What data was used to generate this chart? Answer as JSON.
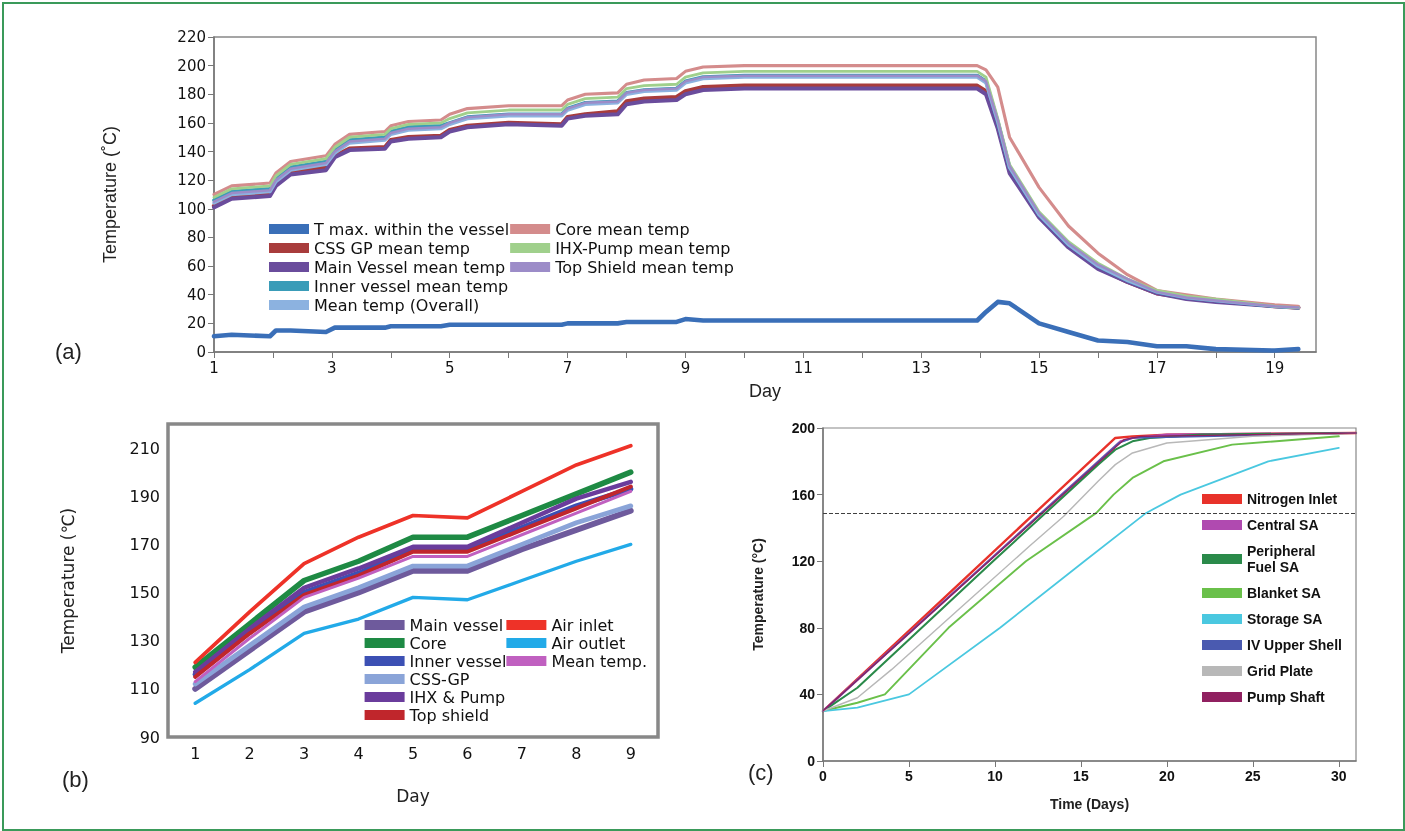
{
  "chart_data": [
    {
      "type": "line",
      "ylabel": "Temperature (˚C)",
      "xlabel": "Day",
      "annotations": [
        "(a)"
      ],
      "legend": "left",
      "marker": "none",
      "xlim": [
        1,
        19.7
      ],
      "xticks": [
        1,
        {
          "value": 2,
          "label": null
        },
        3,
        {
          "value": 4,
          "label": null
        },
        5,
        {
          "value": 6,
          "label": null
        },
        7,
        {
          "value": 8,
          "label": null
        },
        9,
        {
          "value": 10,
          "label": null
        },
        11,
        {
          "value": 12,
          "label": null
        },
        13,
        {
          "value": 14,
          "label": null
        },
        15,
        {
          "value": 16,
          "label": null
        },
        17,
        {
          "value": 18,
          "label": null
        },
        19
      ],
      "ylim": [
        0,
        220
      ],
      "yticks": [
        0,
        20,
        40,
        60,
        80,
        100,
        120,
        140,
        160,
        180,
        200,
        220
      ],
      "x": [
        1,
        1.3,
        1.95,
        2.05,
        2.3,
        2.9,
        3.05,
        3.3,
        3.9,
        4.0,
        4.3,
        4.85,
        5.0,
        5.3,
        6.0,
        6.9,
        7.0,
        7.3,
        7.85,
        8.0,
        8.3,
        8.85,
        9.0,
        9.3,
        10,
        12,
        13.95,
        14.1,
        14.3,
        14.5,
        15,
        15.5,
        16,
        16.5,
        17,
        17.5,
        18,
        19,
        19.4
      ],
      "series": [
        {
          "name": "T max. within the vessel",
          "color": "#3a6fb8",
          "values": [
            11,
            12,
            11,
            15,
            15,
            14,
            17,
            17,
            17,
            18,
            18,
            18,
            19,
            19,
            19,
            19,
            20,
            20,
            20,
            21,
            21,
            21,
            23,
            22,
            22,
            22,
            22,
            28,
            35,
            34,
            20,
            14,
            8,
            7,
            4,
            4,
            2,
            1,
            2
          ]
        },
        {
          "name": "CSS GP mean temp",
          "color": "#a83c3c",
          "values": [
            102,
            108,
            110,
            117,
            125,
            129,
            137,
            142,
            143,
            148,
            150,
            151,
            155,
            158,
            160,
            159,
            164,
            166,
            168,
            175,
            177,
            178,
            182,
            185,
            186,
            186,
            186,
            182,
            158,
            127,
            95,
            74,
            59,
            49,
            41,
            38,
            36,
            32,
            31
          ]
        },
        {
          "name": "Main Vessel mean temp",
          "color": "#6a4c9c",
          "values": [
            101,
            107,
            109,
            116,
            124,
            127,
            136,
            141,
            142,
            147,
            149,
            150,
            154,
            157,
            159,
            158,
            163,
            165,
            166,
            173,
            175,
            176,
            180,
            183,
            184,
            184,
            184,
            180,
            156,
            125,
            94,
            73,
            58,
            49,
            41,
            37,
            35,
            32,
            31
          ]
        },
        {
          "name": "Inner vessel mean temp",
          "color": "#3a9cb8",
          "values": [
            106,
            112,
            114,
            121,
            129,
            133,
            141,
            148,
            150,
            154,
            157,
            158,
            160,
            164,
            166,
            166,
            170,
            174,
            175,
            181,
            183,
            184,
            189,
            192,
            193,
            193,
            193,
            189,
            161,
            129,
            96,
            75,
            60,
            50,
            42,
            38,
            36,
            32,
            31
          ]
        },
        {
          "name": "Mean temp (Overall)",
          "color": "#8cb2e0",
          "values": [
            104,
            110,
            112,
            119,
            127,
            131,
            139,
            146,
            148,
            152,
            155,
            156,
            159,
            163,
            165,
            165,
            169,
            173,
            174,
            180,
            182,
            183,
            188,
            191,
            192,
            192,
            192,
            188,
            161,
            129,
            96,
            75,
            60,
            50,
            42,
            38,
            36,
            32,
            31
          ]
        },
        {
          "name": "Core mean temp",
          "color": "#d48c8c",
          "values": [
            110,
            116,
            118,
            125,
            133,
            137,
            145,
            152,
            154,
            158,
            161,
            162,
            166,
            170,
            172,
            172,
            176,
            180,
            181,
            187,
            190,
            191,
            196,
            199,
            200,
            200,
            200,
            197,
            185,
            150,
            115,
            88,
            69,
            54,
            43,
            40,
            37,
            33,
            32
          ]
        },
        {
          "name": "IHX-Pump mean temp",
          "color": "#a0d08c",
          "values": [
            108,
            114,
            116,
            123,
            131,
            135,
            143,
            150,
            152,
            156,
            159,
            160,
            163,
            167,
            169,
            169,
            173,
            177,
            178,
            184,
            186,
            187,
            192,
            195,
            196,
            196,
            196,
            192,
            163,
            131,
            98,
            77,
            62,
            51,
            43,
            39,
            37,
            32,
            31
          ]
        },
        {
          "name": "Top Shield mean temp",
          "color": "#9c8cc8",
          "values": [
            105,
            111,
            113,
            120,
            128,
            132,
            140,
            147,
            149,
            153,
            156,
            157,
            160,
            164,
            166,
            166,
            170,
            174,
            175,
            181,
            183,
            184,
            189,
            192,
            193,
            193,
            193,
            189,
            162,
            130,
            97,
            76,
            61,
            51,
            42,
            38,
            36,
            32,
            31
          ]
        }
      ]
    },
    {
      "type": "line",
      "ylabel": "Temperature (℃)",
      "xlabel": "Day",
      "annotations": [
        "(b)"
      ],
      "legend": "bottom right",
      "marker": "none",
      "categories": [
        "1",
        "2",
        "3",
        "4",
        "5",
        "6",
        "7",
        "8",
        "9"
      ],
      "ylim": [
        90,
        220
      ],
      "yticks": [
        90,
        110,
        130,
        150,
        170,
        190,
        210
      ],
      "series": [
        {
          "name": "Main vessel",
          "color": "#6e5a9c",
          "values": [
            110,
            126,
            142,
            150,
            159,
            159,
            168,
            176,
            184
          ]
        },
        {
          "name": "Core",
          "color": "#1e8a44",
          "values": [
            119,
            137,
            155,
            163,
            173,
            173,
            182,
            191,
            200
          ]
        },
        {
          "name": "Inner vessel",
          "color": "#3c50b4",
          "values": [
            116,
            134,
            150,
            158,
            168,
            168,
            177,
            186,
            193
          ]
        },
        {
          "name": "CSS-GP",
          "color": "#8aa4d8",
          "values": [
            112,
            128,
            144,
            152,
            161,
            161,
            170,
            179,
            186
          ]
        },
        {
          "name": "IHX & Pump",
          "color": "#6a3c9c",
          "values": [
            117,
            135,
            152,
            160,
            169,
            169,
            179,
            189,
            196
          ]
        },
        {
          "name": "Top shield",
          "color": "#c0262c",
          "values": [
            115,
            133,
            149,
            157,
            167,
            167,
            176,
            185,
            194
          ]
        },
        {
          "name": "Air inlet",
          "color": "#ee3228",
          "values": [
            121,
            142,
            162,
            173,
            182,
            181,
            192,
            203,
            211
          ]
        },
        {
          "name": "Air outlet",
          "color": "#22aae8",
          "values": [
            104,
            118,
            133,
            139,
            148,
            147,
            155,
            163,
            170
          ]
        },
        {
          "name": "Mean temp.",
          "color": "#c060c0",
          "values": [
            113,
            131,
            148,
            156,
            165,
            165,
            174,
            183,
            192
          ]
        }
      ]
    },
    {
      "type": "line",
      "ylabel": "Temperature (°C)",
      "xlabel": "Time (Days)",
      "annotations": [
        "(c)"
      ],
      "legend": "right",
      "marker": "none",
      "xlim": [
        0,
        31
      ],
      "xticks": [
        0,
        5,
        10,
        15,
        20,
        25,
        30
      ],
      "ylim": [
        0,
        200
      ],
      "yticks": [
        0,
        40,
        80,
        120,
        160,
        200
      ],
      "ref_lines": [
        {
          "axis": "y",
          "value": 149,
          "color": "#404040",
          "line_style": "dashed"
        }
      ],
      "series": [
        {
          "name": "Nitrogen Inlet",
          "color": "#e8322a",
          "x": [
            0,
            17,
            18,
            20,
            31
          ],
          "values": [
            30,
            194,
            195,
            196,
            197
          ]
        },
        {
          "name": "Central SA",
          "color": "#b04ab0",
          "x": [
            0,
            17.3,
            18,
            20,
            31
          ],
          "values": [
            30,
            192,
            194,
            196,
            197
          ]
        },
        {
          "name": "Peripheral Fuel SA",
          "color": "#2a8a4a",
          "x": [
            0,
            2,
            10,
            16,
            17,
            18,
            19,
            22,
            31
          ],
          "values": [
            30,
            44,
            121,
            178,
            187,
            192,
            194,
            196,
            197
          ]
        },
        {
          "name": "Blanket SA",
          "color": "#6ac04a",
          "x": [
            0,
            2,
            3.6,
            7.3,
            11.8,
            15.9,
            16.9,
            18,
            19.8,
            23.8,
            30
          ],
          "values": [
            30,
            35,
            40,
            80,
            120,
            149,
            160,
            170,
            180,
            190,
            195
          ]
        },
        {
          "name": "Storage SA",
          "color": "#4ac8e0",
          "x": [
            0,
            2,
            5,
            10.3,
            15.2,
            18.8,
            20.8,
            25.9,
            30
          ],
          "values": [
            30,
            32,
            40,
            80,
            120,
            149,
            160,
            180,
            188
          ]
        },
        {
          "name": "IV Upper Shell",
          "color": "#4a5ab0",
          "x": [
            0,
            17.2,
            18,
            31
          ],
          "values": [
            30,
            191,
            194,
            197
          ]
        },
        {
          "name": "Grid Plate",
          "color": "#b8b8b8",
          "x": [
            0,
            2,
            4,
            8,
            12,
            14,
            16,
            17,
            18,
            20,
            25,
            31
          ],
          "values": [
            30,
            38,
            55,
            92,
            129,
            147,
            168,
            178,
            185,
            191,
            195,
            197
          ]
        },
        {
          "name": "Pump Shaft",
          "color": "#902060",
          "x": [
            0,
            17.5,
            18.5,
            31
          ],
          "values": [
            30,
            193,
            195,
            197
          ]
        }
      ]
    }
  ]
}
